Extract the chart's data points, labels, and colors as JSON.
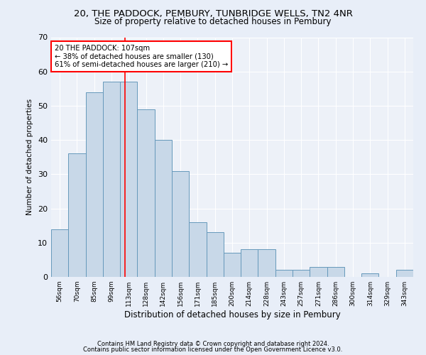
{
  "title1": "20, THE PADDOCK, PEMBURY, TUNBRIDGE WELLS, TN2 4NR",
  "title2": "Size of property relative to detached houses in Pembury",
  "xlabel": "Distribution of detached houses by size in Pembury",
  "ylabel": "Number of detached properties",
  "categories": [
    "56sqm",
    "70sqm",
    "85sqm",
    "99sqm",
    "113sqm",
    "128sqm",
    "142sqm",
    "156sqm",
    "171sqm",
    "185sqm",
    "200sqm",
    "214sqm",
    "228sqm",
    "243sqm",
    "257sqm",
    "271sqm",
    "286sqm",
    "300sqm",
    "314sqm",
    "329sqm",
    "343sqm"
  ],
  "values": [
    14,
    36,
    54,
    57,
    57,
    49,
    40,
    31,
    16,
    13,
    7,
    8,
    8,
    2,
    2,
    3,
    3,
    0,
    1,
    0,
    2
  ],
  "bar_color": "#c8d8e8",
  "bar_edge_color": "#6699bb",
  "red_line_x": 3.78,
  "annotation_text": "20 THE PADDOCK: 107sqm\n← 38% of detached houses are smaller (130)\n61% of semi-detached houses are larger (210) →",
  "annotation_box_color": "white",
  "annotation_box_edge_color": "red",
  "ylim": [
    0,
    70
  ],
  "yticks": [
    0,
    10,
    20,
    30,
    40,
    50,
    60,
    70
  ],
  "footer1": "Contains HM Land Registry data © Crown copyright and database right 2024.",
  "footer2": "Contains public sector information licensed under the Open Government Licence v3.0.",
  "bg_color": "#e8eef8",
  "plot_bg_color": "#edf1f8"
}
